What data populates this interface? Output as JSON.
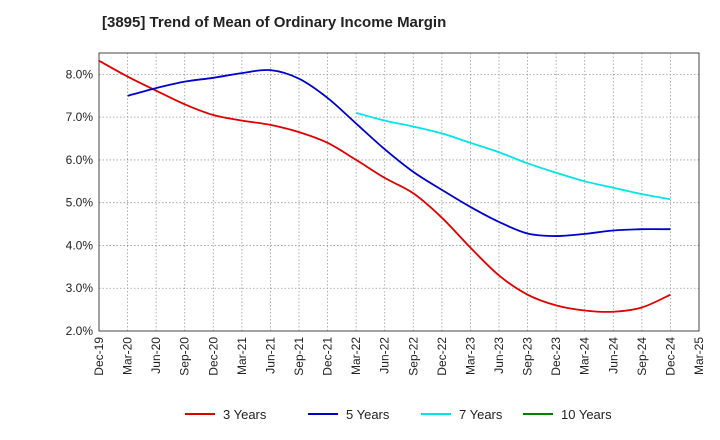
{
  "chart_data": {
    "type": "line",
    "title": "[3895]  Trend of Mean of Ordinary Income Margin",
    "x": [
      "Dec-19",
      "Mar-20",
      "Jun-20",
      "Sep-20",
      "Dec-20",
      "Mar-21",
      "Jun-21",
      "Sep-21",
      "Dec-21",
      "Mar-22",
      "Jun-22",
      "Sep-22",
      "Dec-22",
      "Mar-23",
      "Jun-23",
      "Sep-23",
      "Dec-23",
      "Mar-24",
      "Jun-24",
      "Sep-24",
      "Dec-24",
      "Mar-25"
    ],
    "ylim": [
      2.0,
      8.5
    ],
    "yticks": [
      "2.0%",
      "3.0%",
      "4.0%",
      "5.0%",
      "6.0%",
      "7.0%",
      "8.0%"
    ],
    "grid": true,
    "legend_position": "bottom",
    "series": [
      {
        "name": "3 Years",
        "color": "#e00000",
        "values": [
          8.32,
          7.95,
          7.62,
          7.3,
          7.05,
          6.92,
          6.82,
          6.65,
          6.4,
          6.0,
          5.58,
          5.22,
          4.65,
          3.95,
          3.3,
          2.85,
          2.6,
          2.48,
          2.45,
          2.55,
          2.85,
          null
        ]
      },
      {
        "name": "5 Years",
        "color": "#0000cc",
        "values": [
          null,
          7.5,
          7.68,
          7.83,
          7.92,
          8.03,
          8.1,
          7.9,
          7.45,
          6.85,
          6.25,
          5.72,
          5.3,
          4.9,
          4.55,
          4.28,
          4.22,
          4.27,
          4.35,
          4.38,
          4.38,
          null
        ]
      },
      {
        "name": "7 Years",
        "color": "#00e5e5",
        "values": [
          null,
          null,
          null,
          null,
          null,
          null,
          null,
          null,
          null,
          7.1,
          6.92,
          6.78,
          6.62,
          6.4,
          6.18,
          5.92,
          5.7,
          5.5,
          5.35,
          5.2,
          5.08,
          null
        ]
      },
      {
        "name": "10 Years",
        "color": "#008000",
        "values": [
          null,
          null,
          null,
          null,
          null,
          null,
          null,
          null,
          null,
          null,
          null,
          null,
          null,
          null,
          null,
          null,
          null,
          null,
          null,
          null,
          null,
          null
        ]
      }
    ]
  }
}
